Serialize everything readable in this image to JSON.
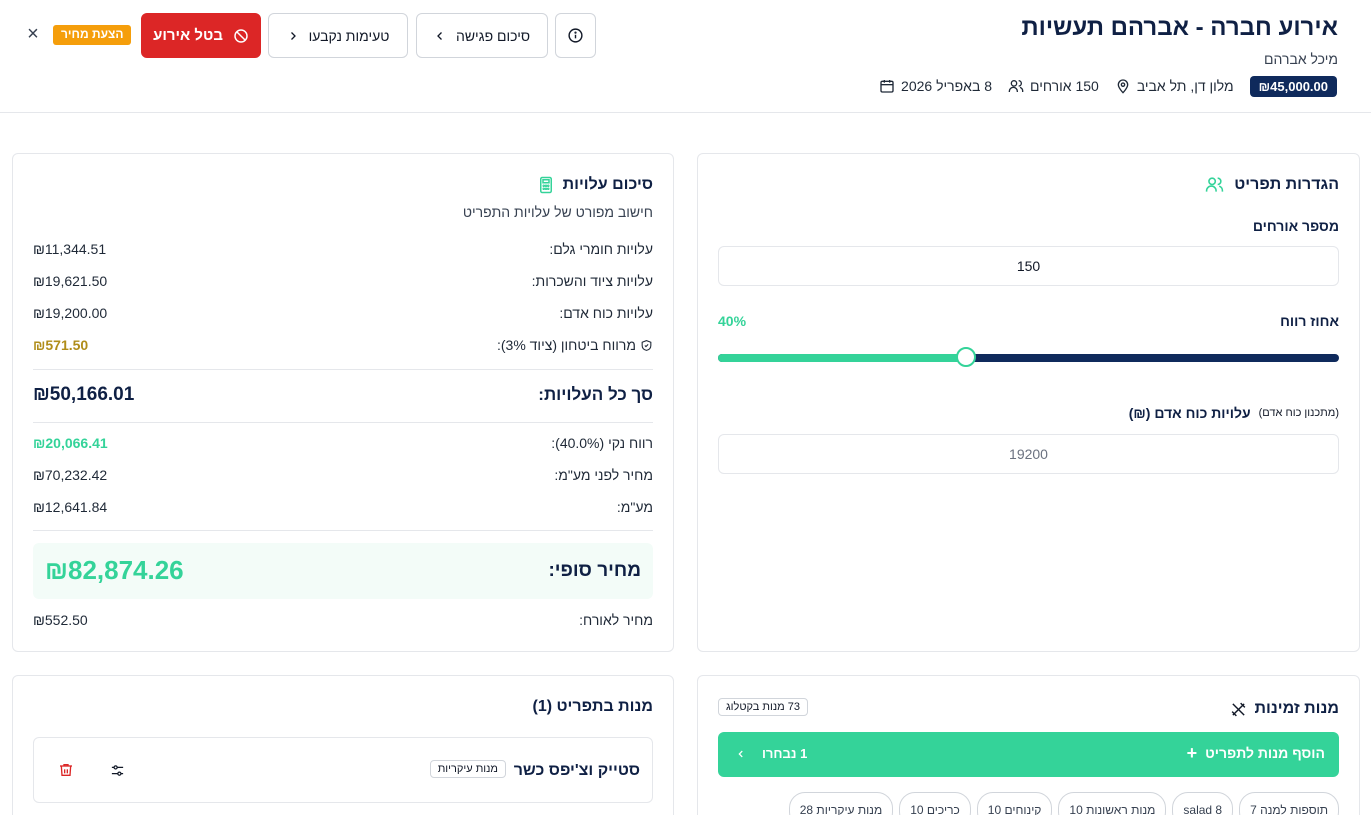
{
  "header": {
    "title": "אירוע חברה - אברהם תעשיות",
    "client": "מיכל אברהם",
    "date": "8 באפריל 2026",
    "guests": "150 אורחים",
    "location": "מלון דן, תל אביב",
    "budget": "₪45,000.00"
  },
  "toolbar": {
    "quote_badge": "הצעת מחיר",
    "cancel_label": "בטל אירוע",
    "tastings_label": "טעימות נקבעו",
    "summary_label": "סיכום פגישה",
    "close_symbol": "×"
  },
  "colors": {
    "navy": "#0f2a5c",
    "green": "#34d399",
    "red": "#dc2626",
    "amber": "#f59e0b",
    "gold": "#b08d1a"
  },
  "cost_summary": {
    "title": "סיכום עלויות",
    "subtitle": "חישוב מפורט של עלויות התפריט",
    "raw_label": "עלויות חומרי גלם:",
    "raw_value": "₪11,344.51",
    "equipment_label": "עלויות ציוד והשכרות:",
    "equipment_value": "₪19,621.50",
    "labor_label": "עלויות כוח אדם:",
    "labor_value": "₪19,200.00",
    "insurance_label": "מרווח ביטחון (ציוד 3%):",
    "insurance_value": "₪571.50",
    "total_label": "סך כל העלויות:",
    "total_value": "₪50,166.01",
    "profit_label": "רווח נקי (40.0%):",
    "profit_value": "₪20,066.41",
    "pre_vat_label": "מחיר לפני מע\"מ:",
    "pre_vat_value": "₪70,232.42",
    "vat_label": "מע\"מ:",
    "vat_value": "₪12,641.84",
    "final_label": "מחיר סופי:",
    "final_value": "₪82,874.26",
    "per_guest_label": "מחיר לאורח:",
    "per_guest_value": "₪552.50"
  },
  "menu_settings": {
    "title": "הגדרות תפריט",
    "guests_label": "מספר אורחים",
    "guests_value": "150",
    "profit_label": "אחוז רווח",
    "profit_display": "40%",
    "profit_fraction": 0.4,
    "labor_label": "עלויות כוח אדם (₪)",
    "labor_hint": "(מתכנון כוח אדם)",
    "labor_placeholder": "19200"
  },
  "menu_dishes": {
    "title": "מנות בתפריט (1)",
    "dish_name": "סטייק וצ'יפס כשר",
    "dish_category": "מנות עיקריות"
  },
  "available_dishes": {
    "title": "מנות זמינות",
    "catalog_count": "73 מנות בקטלוג",
    "add_label": "הוסף מנות לתפריט",
    "selected_label": "1 נבחרו",
    "chips": [
      "מנות עיקריות 28",
      "כריכים 10",
      "קינוחים 10",
      "מנות ראשונות 10",
      "salad 8",
      "תוספות למנה 7"
    ]
  }
}
